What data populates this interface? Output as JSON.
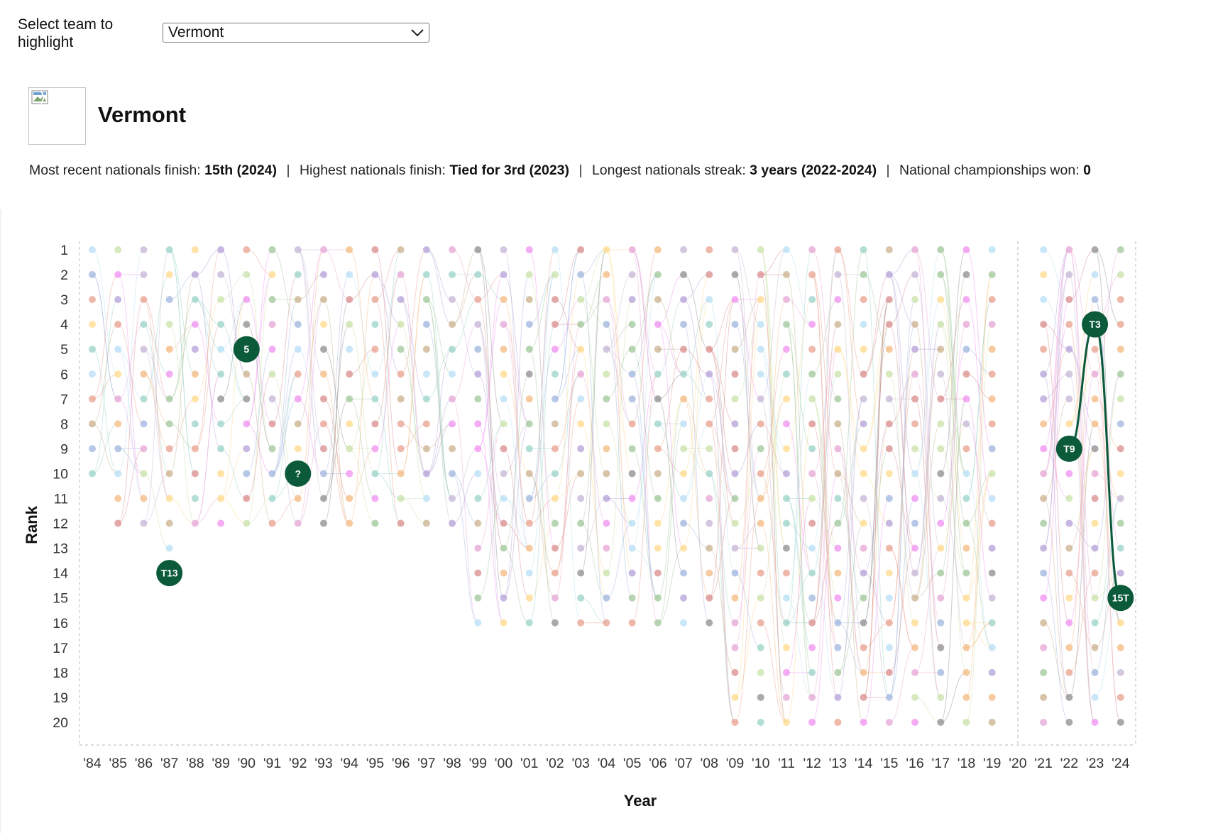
{
  "control": {
    "label": "Select team to highlight",
    "selected": "Vermont"
  },
  "team": {
    "name": "Vermont"
  },
  "stats": [
    {
      "label": "Most recent nationals finish:",
      "value": "15th (2024)"
    },
    {
      "label": "Highest nationals finish:",
      "value": "Tied for 3rd (2023)"
    },
    {
      "label": "Longest nationals streak:",
      "value": "3 years (2022-2024)"
    },
    {
      "label": "National championships won:",
      "value": "0"
    }
  ],
  "chart_data": {
    "type": "line",
    "xlabel": "Year",
    "ylabel": "Rank",
    "x": [
      "'84",
      "'85",
      "'86",
      "'87",
      "'88",
      "'89",
      "'90",
      "'91",
      "'92",
      "'93",
      "'94",
      "'95",
      "'96",
      "'97",
      "'98",
      "'99",
      "'00",
      "'01",
      "'02",
      "'03",
      "'04",
      "'05",
      "'06",
      "'07",
      "'08",
      "'09",
      "'10",
      "'11",
      "'12",
      "'13",
      "'14",
      "'15",
      "'16",
      "'17",
      "'18",
      "'19",
      "'20",
      "'21",
      "'22",
      "'23",
      "'24"
    ],
    "ylim": [
      1,
      20
    ],
    "y_ticks": [
      "1",
      "2",
      "3",
      "4",
      "5",
      "6",
      "7",
      "8",
      "9",
      "10",
      "11",
      "12",
      "13",
      "14",
      "15",
      "16",
      "17",
      "18",
      "19",
      "20"
    ],
    "teams_per_year": {
      "'84": 10,
      "'85": 12,
      "'86": 12,
      "'87": 13,
      "'88": 12,
      "'89": 12,
      "'90": 12,
      "'91": 12,
      "'92": 12,
      "'93": 12,
      "'94": 12,
      "'95": 12,
      "'96": 12,
      "'97": 12,
      "'98": 12,
      "'99": 16,
      "'00": 16,
      "'01": 16,
      "'02": 16,
      "'03": 16,
      "'04": 16,
      "'05": 16,
      "'06": 16,
      "'07": 16,
      "'08": 16,
      "'09": 20,
      "'10": 20,
      "'11": 20,
      "'12": 20,
      "'13": 20,
      "'14": 20,
      "'15": 20,
      "'16": 20,
      "'17": 20,
      "'18": 20,
      "'19": 20,
      "'20": 0,
      "'21": 20,
      "'22": 20,
      "'23": 20,
      "'24": 20
    },
    "highlight": {
      "name": "Vermont",
      "color": "#0b5a3a",
      "points": [
        {
          "x": "'87",
          "label": "T13",
          "rank": 14
        },
        {
          "x": "'90",
          "label": "5",
          "rank": 5
        },
        {
          "x": "'92",
          "label": "?",
          "rank": 10
        },
        {
          "x": "'22",
          "label": "T9",
          "rank": 9
        },
        {
          "x": "'23",
          "label": "T3",
          "rank": 4
        },
        {
          "x": "'24",
          "label": "15T",
          "rank": 15
        }
      ],
      "line_from": "'22"
    },
    "background_palette": [
      "#d98c8c",
      "#e8a08e",
      "#f4b980",
      "#ffd98a",
      "#c9e2a8",
      "#9fc79a",
      "#9ad3c8",
      "#b7dff5",
      "#9fb5dd",
      "#b4a0d8",
      "#e6a6d6",
      "#f090f0",
      "#8d8d8d",
      "#c9b08c",
      "#c5b6d6"
    ]
  }
}
